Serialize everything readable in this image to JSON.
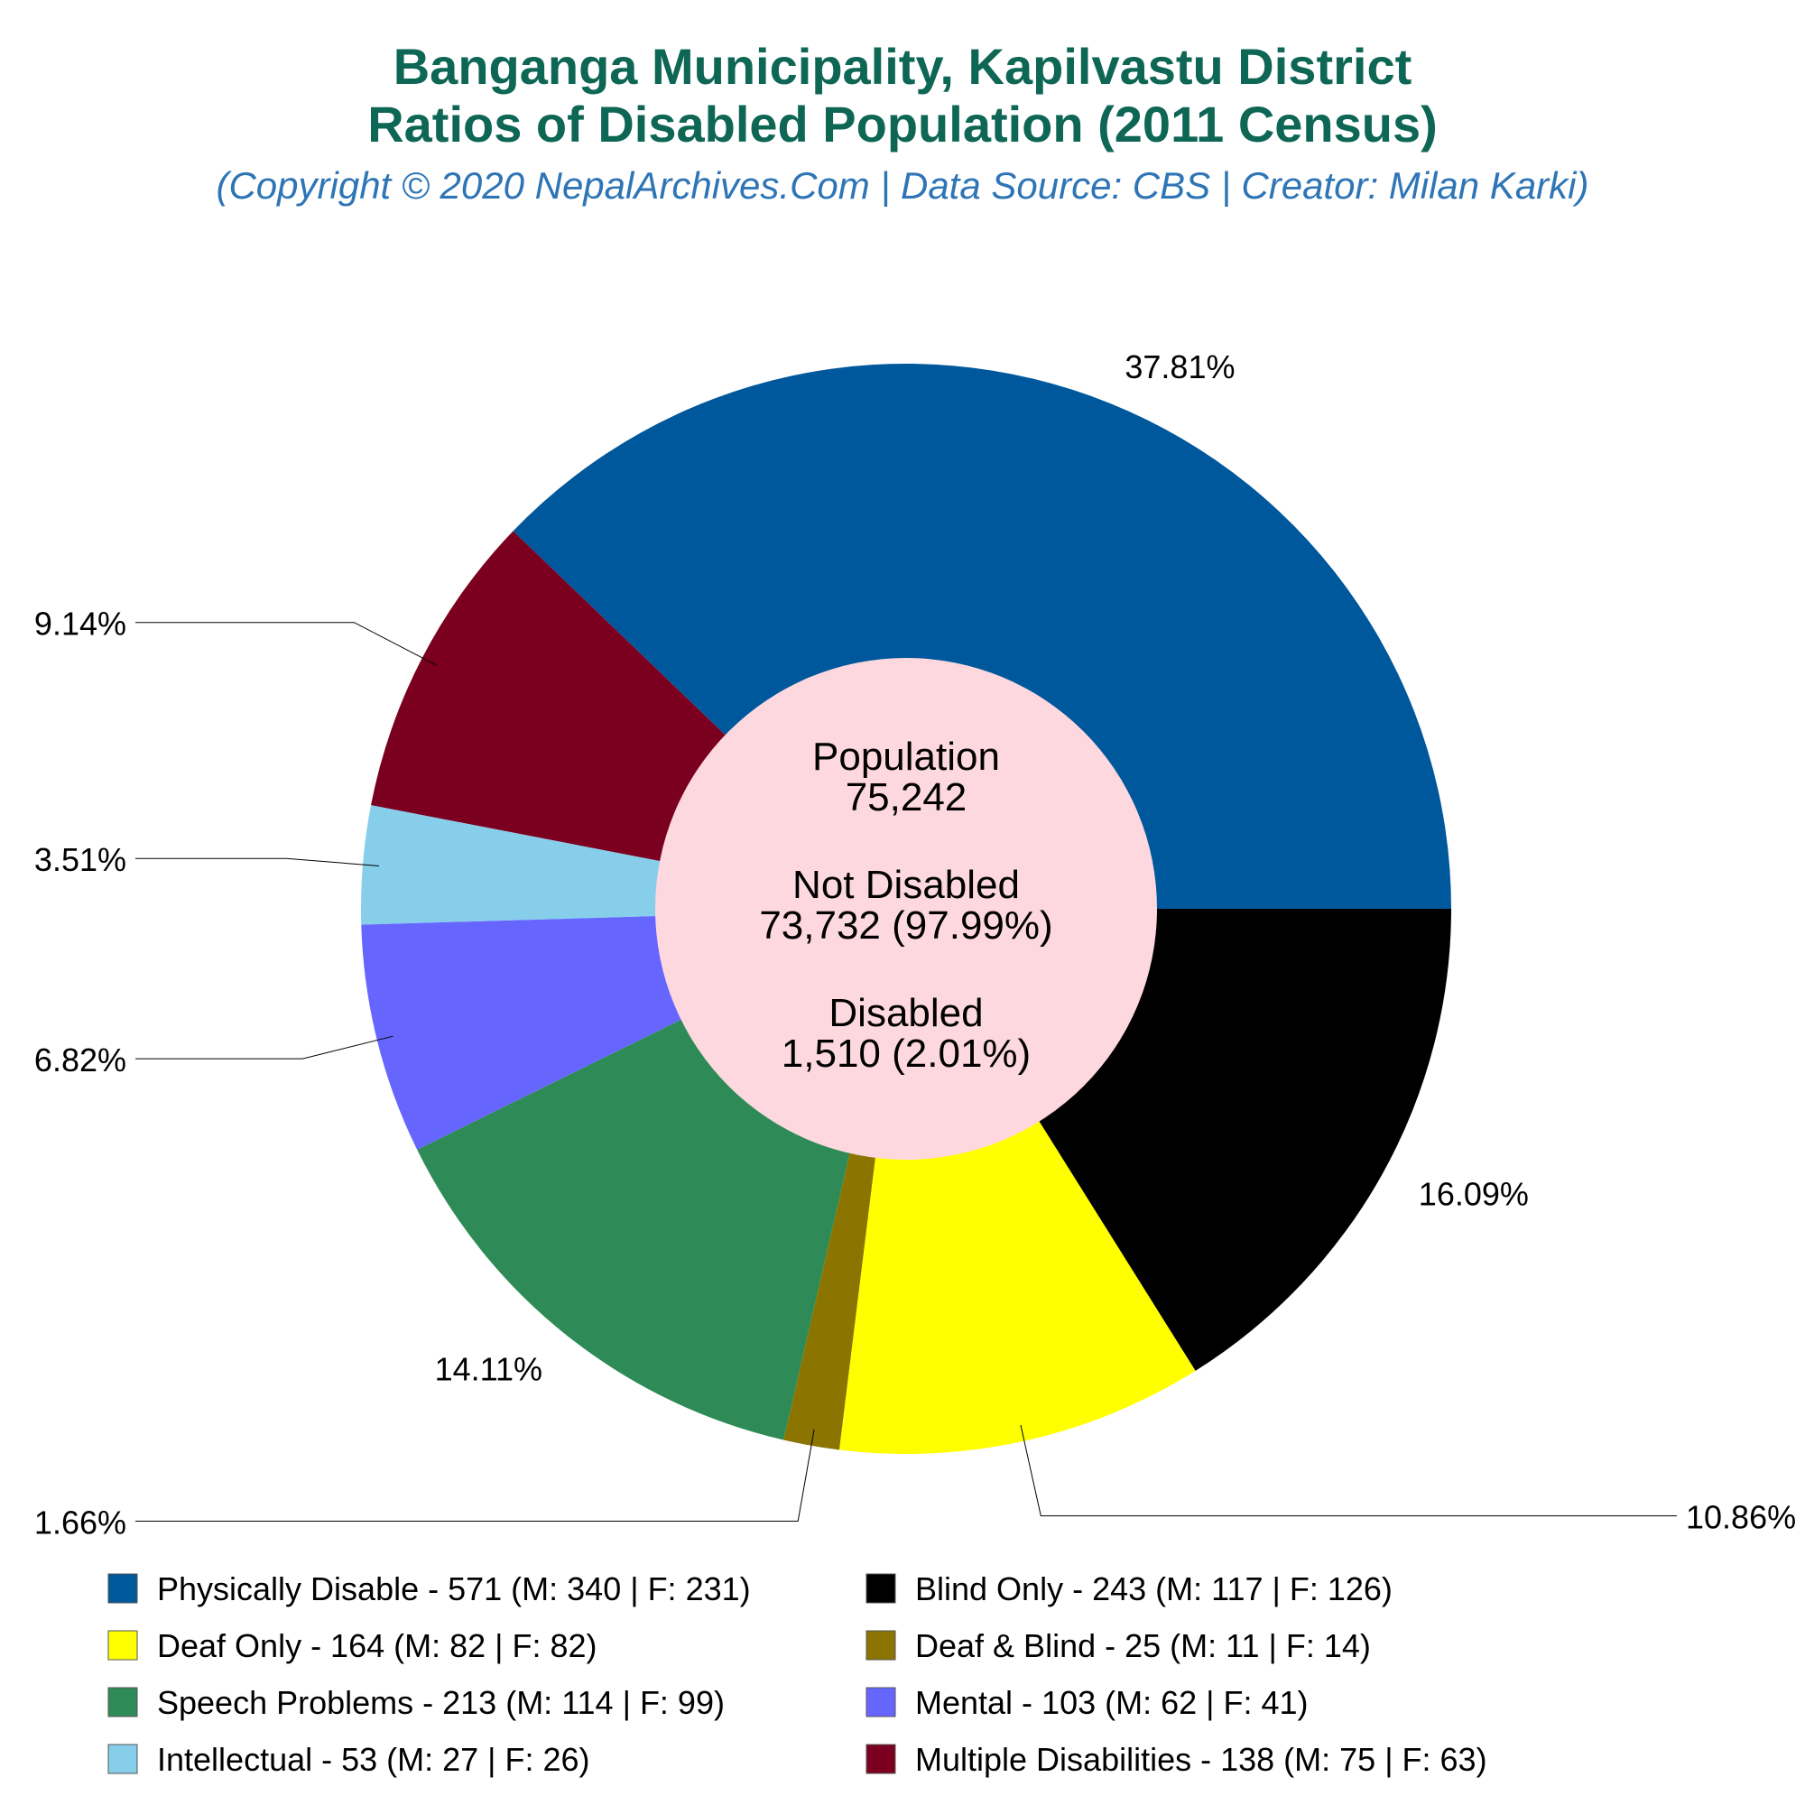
{
  "chart_data": {
    "type": "pie",
    "title_line1": "Banganga Municipality, Kapilvastu District",
    "title_line2": "Ratios of Disabled Population (2011 Census)",
    "subtitle": "(Copyright © 2020 NepalArchives.Com | Data Source: CBS | Creator: Milan Karki)",
    "center": {
      "population_label": "Population",
      "population_value": "75,242",
      "not_disabled_label": "Not Disabled",
      "not_disabled_value": "73,732 (97.99%)",
      "disabled_label": "Disabled",
      "disabled_value": "1,510 (2.01%)"
    },
    "slices": [
      {
        "name": "Physically Disable",
        "value": 571,
        "male": 340,
        "female": 231,
        "percent_label": "37.81%",
        "color": "#00589c",
        "legend": "Physically Disable - 571 (M: 340 | F: 231)"
      },
      {
        "name": "Multiple Disabilities",
        "value": 138,
        "male": 75,
        "female": 63,
        "percent_label": "9.14%",
        "color": "#7b0020",
        "legend": "Multiple Disabilities - 138 (M: 75 | F: 63)"
      },
      {
        "name": "Intellectual",
        "value": 53,
        "male": 27,
        "female": 26,
        "percent_label": "3.51%",
        "color": "#87ceeb",
        "legend": "Intellectual - 53 (M: 27 | F: 26)"
      },
      {
        "name": "Mental",
        "value": 103,
        "male": 62,
        "female": 41,
        "percent_label": "6.82%",
        "color": "#6666ff",
        "legend": "Mental - 103 (M: 62 | F: 41)"
      },
      {
        "name": "Speech Problems",
        "value": 213,
        "male": 114,
        "female": 99,
        "percent_label": "14.11%",
        "color": "#2e8b57",
        "legend": "Speech Problems - 213 (M: 114 | F: 99)"
      },
      {
        "name": "Deaf & Blind",
        "value": 25,
        "male": 11,
        "female": 14,
        "percent_label": "1.66%",
        "color": "#8b7500",
        "legend": "Deaf & Blind - 25 (M: 11 | F: 14)"
      },
      {
        "name": "Deaf Only",
        "value": 164,
        "male": 82,
        "female": 82,
        "percent_label": "10.86%",
        "color": "#ffff00",
        "legend": "Deaf Only - 164 (M: 82 | F: 82)"
      },
      {
        "name": "Blind Only",
        "value": 243,
        "male": 117,
        "female": 126,
        "percent_label": "16.09%",
        "color": "#000000",
        "legend": "Blind Only - 243 (M: 117 | F: 126)"
      }
    ],
    "legend_order": [
      "Physically Disable",
      "Blind Only",
      "Deaf Only",
      "Deaf & Blind",
      "Speech Problems",
      "Mental",
      "Intellectual",
      "Multiple Disabilities"
    ],
    "legend_placement": "bottom",
    "title_color": "#0e6655",
    "subtitle_color": "#2e75b6",
    "center_fill": "#fdd8df"
  }
}
